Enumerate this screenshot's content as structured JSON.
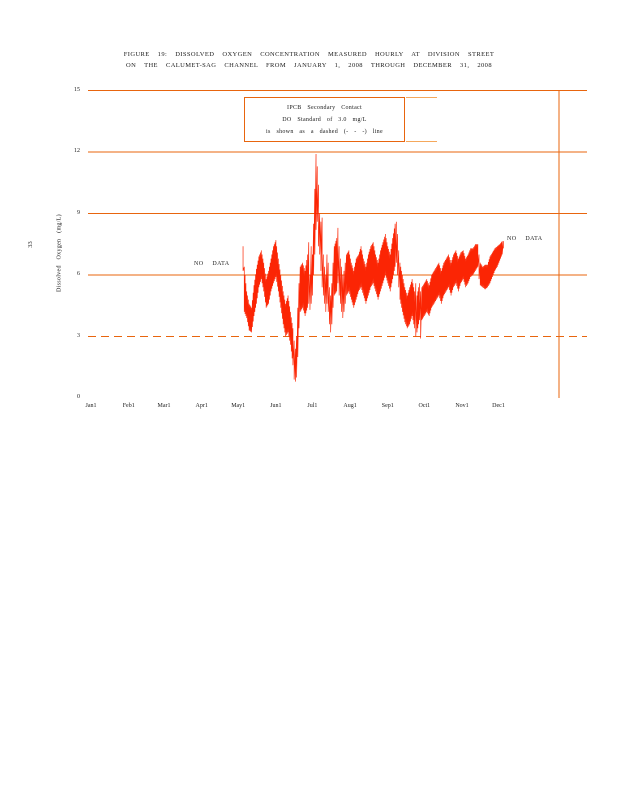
{
  "page_number": "33",
  "title": {
    "line1": "FIGURE 19: DISSOLVED OXYGEN CONCENTRATION MEASURED HOURLY AT DIVISION STREET",
    "line2": "ON THE CALUMET-SAG CHANNEL FROM JANUARY 1, 2008 THROUGH DECEMBER 31, 2008"
  },
  "legend": {
    "line1": "IPCB Secondary Contact",
    "line2": "DO Standard of 3.0 mg/L",
    "line3": "is shown as a dashed (- - -) line"
  },
  "annotations": {
    "no_data_left": "NO DATA",
    "no_data_right": "NO DATA"
  },
  "colors": {
    "grid": "#E8650E",
    "grid_light": "#F5A85C",
    "trace": "#FB2504",
    "text": "#1a1a1a"
  },
  "chart_data": {
    "type": "line",
    "title": "FIGURE 19: DISSOLVED OXYGEN CONCENTRATION MEASURED HOURLY AT DIVISION STREET ON THE CALUMET-SAG CHANNEL FROM JANUARY 1, 2008 THROUGH DECEMBER 31, 2008",
    "xlabel": "",
    "ylabel": "Dissolved Oxygen (mg/L)",
    "ylim": [
      0,
      15
    ],
    "y_ticks": [
      0,
      3,
      6,
      9,
      12,
      15
    ],
    "grid": "horizontal-only",
    "standard_line": {
      "value": 3.0,
      "style": "dashed",
      "label": "IPCB Secondary Contact DO Standard"
    },
    "months": [
      {
        "label": "Jan1",
        "day": 0
      },
      {
        "label": "Feb1",
        "day": 31
      },
      {
        "label": "Mar1",
        "day": 60
      },
      {
        "label": "Apr1",
        "day": 91
      },
      {
        "label": "May1",
        "day": 121
      },
      {
        "label": "Jun1",
        "day": 152
      },
      {
        "label": "Jul1",
        "day": 182
      },
      {
        "label": "Aug1",
        "day": 213
      },
      {
        "label": "Sep1",
        "day": 244
      },
      {
        "label": "Oct1",
        "day": 274
      },
      {
        "label": "Nov1",
        "day": 305
      },
      {
        "label": "Dec1",
        "day": 335
      }
    ],
    "data_gaps": [
      {
        "from_day": 0,
        "to_day": 124,
        "note": "NO DATA"
      },
      {
        "from_day": 340,
        "to_day": 365,
        "note": "NO DATA"
      }
    ],
    "series": [
      {
        "name": "Hourly dissolved oxygen (mg/L)",
        "units": "mg/L",
        "representation": "daily envelope [day_of_year_from_Jan1, min, max]",
        "envelope_day_min_max": [
          [
            125,
            6.2,
            7.4
          ],
          [
            126,
            4.2,
            6.4
          ],
          [
            128,
            3.9,
            5.2
          ],
          [
            130,
            3.3,
            4.6
          ],
          [
            132,
            3.2,
            4.4
          ],
          [
            134,
            4.0,
            5.5
          ],
          [
            136,
            4.6,
            6.3
          ],
          [
            138,
            5.4,
            6.9
          ],
          [
            140,
            5.8,
            7.2
          ],
          [
            142,
            5.2,
            6.6
          ],
          [
            144,
            4.4,
            5.8
          ],
          [
            146,
            4.6,
            6.2
          ],
          [
            148,
            5.2,
            6.8
          ],
          [
            150,
            5.6,
            7.4
          ],
          [
            152,
            5.9,
            7.7
          ],
          [
            154,
            5.2,
            6.8
          ],
          [
            156,
            4.4,
            6.0
          ],
          [
            158,
            3.6,
            5.2
          ],
          [
            160,
            3.0,
            4.6
          ],
          [
            162,
            3.2,
            5.0
          ],
          [
            164,
            2.6,
            4.2
          ],
          [
            166,
            1.6,
            3.4
          ],
          [
            167,
            0.9,
            2.8
          ],
          [
            168,
            0.8,
            2.4
          ],
          [
            169,
            1.0,
            3.0
          ],
          [
            170,
            2.0,
            4.4
          ],
          [
            171,
            3.4,
            5.6
          ],
          [
            172,
            4.2,
            6.4
          ],
          [
            174,
            4.4,
            6.6
          ],
          [
            176,
            4.0,
            6.2
          ],
          [
            178,
            4.4,
            7.0
          ],
          [
            179,
            4.6,
            7.6
          ],
          [
            180,
            4.3,
            6.0
          ],
          [
            181,
            4.6,
            7.4
          ],
          [
            182,
            5.0,
            7.0
          ],
          [
            183,
            6.0,
            8.5
          ],
          [
            184,
            7.0,
            10.2
          ],
          [
            185,
            8.2,
            11.9
          ],
          [
            186,
            8.6,
            11.3
          ],
          [
            187,
            7.4,
            10.4
          ],
          [
            188,
            7.0,
            9.0
          ],
          [
            189,
            6.2,
            8.6
          ],
          [
            190,
            5.4,
            8.8
          ],
          [
            191,
            5.0,
            7.0
          ],
          [
            192,
            4.6,
            6.4
          ],
          [
            193,
            4.2,
            6.0
          ],
          [
            194,
            4.6,
            7.0
          ],
          [
            195,
            4.2,
            6.6
          ],
          [
            196,
            3.6,
            5.4
          ],
          [
            197,
            3.2,
            5.0
          ],
          [
            198,
            3.6,
            5.6
          ],
          [
            199,
            4.4,
            6.6
          ],
          [
            200,
            5.0,
            7.4
          ],
          [
            202,
            5.2,
            7.8
          ],
          [
            203,
            5.6,
            8.3
          ],
          [
            204,
            5.0,
            7.4
          ],
          [
            205,
            4.6,
            6.8
          ],
          [
            206,
            4.2,
            6.4
          ],
          [
            207,
            3.9,
            6.0
          ],
          [
            208,
            4.2,
            6.2
          ],
          [
            209,
            4.6,
            6.6
          ],
          [
            210,
            5.0,
            7.0
          ],
          [
            212,
            5.2,
            7.2
          ],
          [
            214,
            4.8,
            6.6
          ],
          [
            216,
            4.4,
            6.2
          ],
          [
            218,
            4.8,
            6.8
          ],
          [
            220,
            5.2,
            7.0
          ],
          [
            222,
            5.4,
            7.4
          ],
          [
            224,
            5.0,
            6.8
          ],
          [
            226,
            4.6,
            6.4
          ],
          [
            228,
            5.0,
            7.0
          ],
          [
            230,
            5.4,
            7.4
          ],
          [
            232,
            5.6,
            7.6
          ],
          [
            234,
            5.2,
            7.0
          ],
          [
            236,
            4.8,
            6.6
          ],
          [
            238,
            5.2,
            7.2
          ],
          [
            240,
            5.6,
            7.6
          ],
          [
            242,
            6.0,
            8.0
          ],
          [
            244,
            5.6,
            7.4
          ],
          [
            246,
            5.2,
            7.0
          ],
          [
            248,
            5.8,
            7.8
          ],
          [
            250,
            6.4,
            8.5
          ],
          [
            251,
            6.6,
            8.6
          ],
          [
            252,
            6.0,
            8.0
          ],
          [
            253,
            5.4,
            7.2
          ],
          [
            254,
            4.8,
            6.6
          ],
          [
            256,
            4.2,
            6.0
          ],
          [
            258,
            3.7,
            5.4
          ],
          [
            260,
            3.4,
            5.0
          ],
          [
            262,
            3.6,
            5.4
          ],
          [
            264,
            4.0,
            5.8
          ],
          [
            266,
            3.4,
            5.2
          ],
          [
            267,
            3.0,
            5.6
          ],
          [
            268,
            3.2,
            5.0
          ],
          [
            270,
            3.8,
            5.6
          ],
          [
            271,
            2.9,
            5.2
          ],
          [
            272,
            3.8,
            5.4
          ],
          [
            274,
            4.0,
            5.6
          ],
          [
            276,
            4.2,
            5.8
          ],
          [
            278,
            4.0,
            5.5
          ],
          [
            280,
            4.4,
            6.0
          ],
          [
            282,
            4.6,
            6.2
          ],
          [
            284,
            4.8,
            6.4
          ],
          [
            286,
            5.0,
            6.6
          ],
          [
            288,
            4.6,
            6.2
          ],
          [
            290,
            5.0,
            6.6
          ],
          [
            292,
            5.2,
            6.8
          ],
          [
            294,
            5.4,
            7.0
          ],
          [
            296,
            5.0,
            6.6
          ],
          [
            298,
            5.4,
            7.0
          ],
          [
            300,
            5.6,
            7.2
          ],
          [
            302,
            5.2,
            6.8
          ],
          [
            304,
            5.6,
            7.1
          ],
          [
            306,
            5.8,
            7.2
          ],
          [
            308,
            5.4,
            6.8
          ],
          [
            310,
            5.6,
            7.0
          ],
          [
            312,
            5.9,
            7.3
          ],
          [
            314,
            6.0,
            7.3
          ],
          [
            316,
            6.2,
            7.5
          ],
          [
            318,
            6.4,
            7.5
          ],
          [
            319,
            5.8,
            7.0
          ],
          [
            320,
            5.5,
            6.6
          ],
          [
            322,
            5.4,
            6.4
          ],
          [
            324,
            5.3,
            6.5
          ],
          [
            326,
            5.4,
            6.5
          ],
          [
            328,
            5.6,
            6.9
          ],
          [
            330,
            5.9,
            7.1
          ],
          [
            332,
            6.2,
            7.3
          ],
          [
            334,
            6.4,
            7.4
          ],
          [
            336,
            6.7,
            7.5
          ],
          [
            338,
            7.0,
            7.65
          ],
          [
            339,
            7.3,
            7.65
          ]
        ]
      }
    ]
  }
}
